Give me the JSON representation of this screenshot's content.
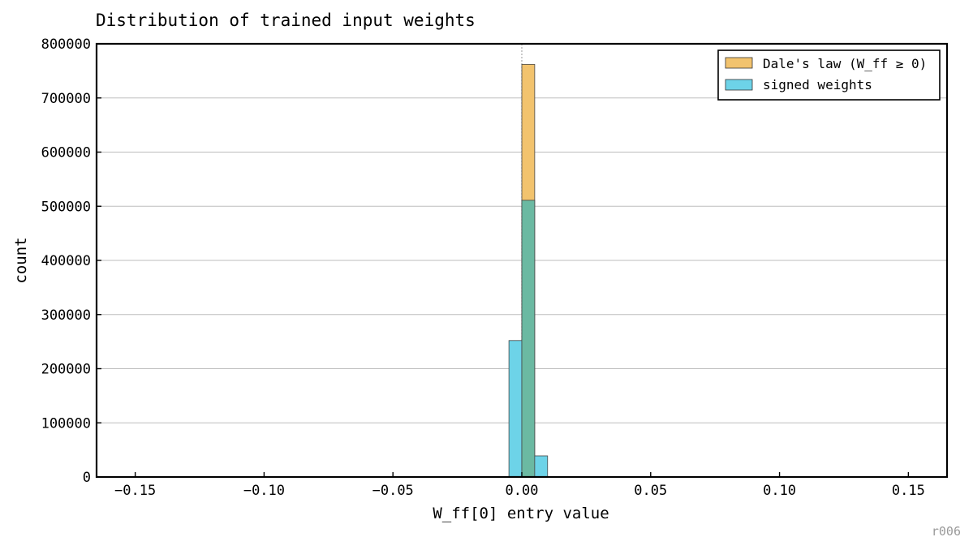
{
  "chart_data": {
    "type": "bar",
    "title": "Distribution of trained input weights",
    "xlabel": "W_ff[0] entry value",
    "ylabel": "count",
    "xlim": [
      -0.165,
      0.165
    ],
    "ylim": [
      0,
      800000
    ],
    "bin_width": 0.005,
    "x_ticks": [
      -0.15,
      -0.1,
      -0.05,
      0.0,
      0.05,
      0.1,
      0.15
    ],
    "x_tick_labels": [
      "−0.15",
      "−0.10",
      "−0.05",
      "0.00",
      "0.05",
      "0.10",
      "0.15"
    ],
    "y_ticks": [
      0,
      100000,
      200000,
      300000,
      400000,
      500000,
      600000,
      700000,
      800000
    ],
    "y_tick_labels": [
      "0",
      "100000",
      "200000",
      "300000",
      "400000",
      "500000",
      "600000",
      "700000",
      "800000"
    ],
    "grid": "horizontal",
    "reference_line_x": 0,
    "legend_position": "top-right",
    "series": [
      {
        "name": "Dale's law (W_ff ≥ 0)",
        "color": "#f2c36e",
        "bins": [
          {
            "x0": 0.0,
            "x1": 0.005,
            "count": 762000
          }
        ]
      },
      {
        "name": "signed weights",
        "color": "#6dd3e8",
        "bins": [
          {
            "x0": -0.005,
            "x1": 0.0,
            "count": 252000
          },
          {
            "x0": 0.0,
            "x1": 0.005,
            "count": 511000
          },
          {
            "x0": 0.005,
            "x1": 0.01,
            "count": 39000
          }
        ]
      }
    ],
    "overlap_color": "#6bb9a2"
  },
  "footer_tag": "r006"
}
